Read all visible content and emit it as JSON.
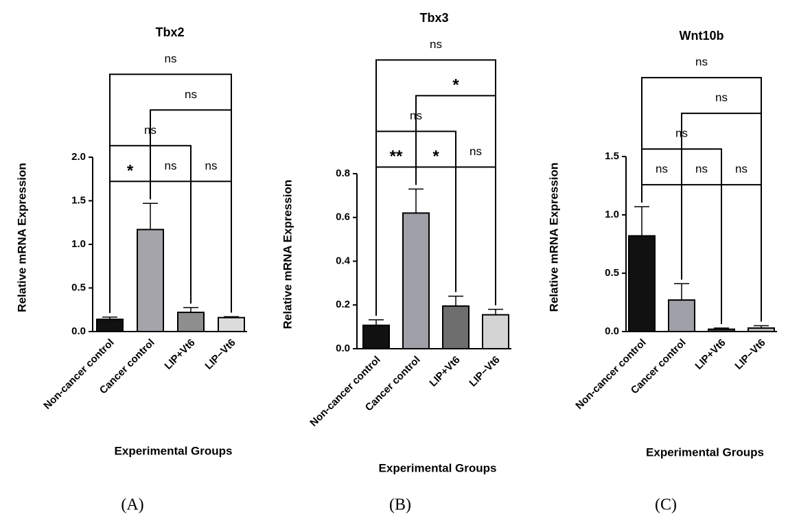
{
  "chart_data": [
    {
      "type": "bar",
      "panel_label": "(A)",
      "title": "Tbx2",
      "ylabel": "Relative mRNA Expression",
      "xlabel": "Experimental Groups",
      "categories": [
        "Non-cancer control",
        "Cancer control",
        "LIP+Vt6",
        "LIP−Vt6"
      ],
      "values": [
        0.14,
        1.17,
        0.22,
        0.16
      ],
      "errors": [
        0.025,
        0.3,
        0.055,
        0.01
      ],
      "colors": [
        "#111111",
        "#a4a4aa",
        "#8e8e8e",
        "#dcdcdc"
      ],
      "ylim": [
        0,
        2
      ],
      "yticks": [
        {
          "value": 0,
          "label": "0.0"
        },
        {
          "value": 0.5,
          "label": "0.5"
        },
        {
          "value": 1,
          "label": "1.0"
        },
        {
          "value": 1.5,
          "label": "1.5"
        },
        {
          "value": 2,
          "label": "2.0"
        }
      ],
      "brackets": [
        {
          "from": 0,
          "to": 1,
          "label": "*"
        },
        {
          "from": 1,
          "to": 2,
          "label": "ns"
        },
        {
          "from": 2,
          "to": 3,
          "label": "ns"
        },
        {
          "from": 0,
          "to": 2,
          "label": "ns"
        },
        {
          "from": 1,
          "to": 3,
          "label": "ns"
        },
        {
          "from": 0,
          "to": 3,
          "label": "ns"
        }
      ]
    },
    {
      "type": "bar",
      "panel_label": "(B)",
      "title": "Tbx3",
      "ylabel": "Relative mRNA Expression",
      "xlabel": "Experimental Groups",
      "categories": [
        "Non-cancer control",
        "Cancer control",
        "LIP+Vt6",
        "LIP−Vt6"
      ],
      "values": [
        0.107,
        0.62,
        0.195,
        0.155
      ],
      "errors": [
        0.025,
        0.11,
        0.045,
        0.025
      ],
      "colors": [
        "#111111",
        "#a0a0a8",
        "#6e6e6e",
        "#d4d4d4"
      ],
      "ylim": [
        0,
        0.8
      ],
      "yticks": [
        {
          "value": 0,
          "label": "0.0"
        },
        0.2,
        0.4,
        0.6,
        0.8
      ],
      "brackets": [
        {
          "from": 0,
          "to": 1,
          "label": "**"
        },
        {
          "from": 1,
          "to": 2,
          "label": "*"
        },
        {
          "from": 2,
          "to": 3,
          "label": "ns"
        },
        {
          "from": 0,
          "to": 2,
          "label": "ns"
        },
        {
          "from": 1,
          "to": 3,
          "label": "*"
        },
        {
          "from": 0,
          "to": 3,
          "label": "ns"
        }
      ]
    },
    {
      "type": "bar",
      "panel_label": "(C)",
      "title": "Wnt10b",
      "ylabel": "Relative mRNA Expression",
      "xlabel": "Experimental Groups",
      "categories": [
        "Non-cancer control",
        "Cancer control",
        "LIP+Vt6",
        "LIP−Vt6"
      ],
      "values": [
        0.82,
        0.27,
        0.02,
        0.03
      ],
      "errors": [
        0.25,
        0.14,
        0.01,
        0.02
      ],
      "colors": [
        "#111111",
        "#a0a0a8",
        "#444444",
        "#bbbbbb"
      ],
      "ylim": [
        0,
        1.5
      ],
      "yticks": [
        {
          "value": 0,
          "label": "0.0"
        },
        0.5,
        {
          "value": 1,
          "label": "1.0"
        },
        1.5
      ],
      "brackets": [
        {
          "from": 0,
          "to": 1,
          "label": "ns"
        },
        {
          "from": 1,
          "to": 2,
          "label": "ns"
        },
        {
          "from": 2,
          "to": 3,
          "label": "ns"
        },
        {
          "from": 0,
          "to": 2,
          "label": "ns"
        },
        {
          "from": 1,
          "to": 3,
          "label": "ns"
        },
        {
          "from": 0,
          "to": 3,
          "label": "ns"
        }
      ]
    }
  ]
}
